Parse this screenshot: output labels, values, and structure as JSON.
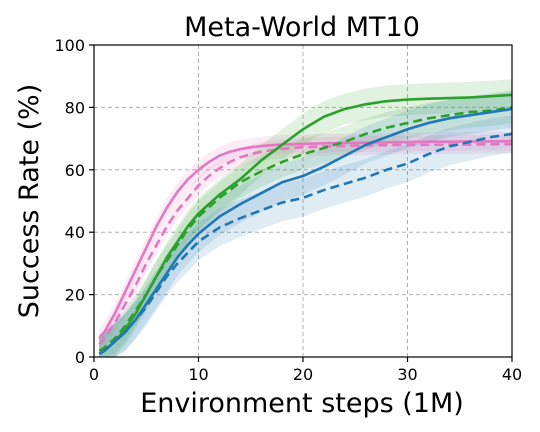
{
  "chart_data": {
    "type": "line",
    "title": "Meta-World MT10",
    "xlabel": "Environment steps (1M)",
    "ylabel": "Success Rate (%)",
    "xlim": [
      0,
      40
    ],
    "ylim": [
      0,
      100
    ],
    "xticks": [
      0,
      10,
      20,
      30,
      40
    ],
    "yticks": [
      0,
      20,
      40,
      60,
      80,
      100
    ],
    "grid": true,
    "series": [
      {
        "color": "#e377c2",
        "linestyle": "solid",
        "band": 3,
        "x": [
          0.5,
          1,
          2,
          3,
          4,
          5,
          6,
          7,
          8,
          9,
          10,
          11,
          12,
          13,
          14,
          15,
          16,
          17,
          18,
          19,
          20,
          22,
          24,
          26,
          28,
          30,
          32,
          34,
          36,
          38,
          40
        ],
        "y": [
          6,
          8,
          14,
          21,
          28,
          35,
          42,
          48,
          53,
          57,
          60,
          62.5,
          64.5,
          65.8,
          66.6,
          67.2,
          67.6,
          67.9,
          68.1,
          68.2,
          68.3,
          68.5,
          68.6,
          68.7,
          68.8,
          68.9,
          69,
          69,
          69.1,
          69.1,
          69.2
        ]
      },
      {
        "color": "#e377c2",
        "linestyle": "dashed",
        "band": 3,
        "x": [
          0.5,
          1,
          2,
          3,
          4,
          5,
          6,
          7,
          8,
          9,
          10,
          11,
          12,
          13,
          14,
          15,
          16,
          17,
          18,
          19,
          20,
          22,
          24,
          26,
          28,
          30,
          32,
          34,
          36,
          38,
          40
        ],
        "y": [
          4,
          6,
          11,
          17,
          23,
          30,
          36,
          42,
          47,
          51,
          55,
          58,
          60.5,
          62.5,
          64,
          65,
          65.8,
          66.3,
          66.7,
          67,
          67.2,
          67.5,
          67.7,
          67.8,
          67.9,
          68,
          68,
          68.1,
          68.1,
          68.2,
          68.2
        ]
      },
      {
        "color": "#2ca02c",
        "linestyle": "solid",
        "band": 5,
        "x": [
          0.5,
          1,
          2,
          3,
          4,
          5,
          6,
          7,
          8,
          9,
          10,
          12,
          14,
          16,
          18,
          20,
          22,
          24,
          26,
          28,
          30,
          32,
          34,
          36,
          38,
          40
        ],
        "y": [
          1,
          2,
          5,
          9,
          14,
          20,
          26,
          32,
          37,
          42,
          46,
          52,
          57,
          63,
          68,
          73,
          77,
          79.5,
          81,
          82,
          82.5,
          82.8,
          83,
          83.2,
          83.6,
          84
        ]
      },
      {
        "color": "#2ca02c",
        "linestyle": "dashed",
        "band": 5,
        "x": [
          0.5,
          1,
          2,
          3,
          4,
          5,
          6,
          7,
          8,
          9,
          10,
          12,
          14,
          16,
          18,
          20,
          22,
          24,
          26,
          28,
          30,
          32,
          34,
          36,
          38,
          40
        ],
        "y": [
          2,
          3,
          6,
          10,
          15,
          20,
          26,
          31,
          36,
          41,
          45,
          51,
          56,
          59.5,
          62.5,
          65,
          67,
          69,
          71.5,
          73.5,
          75,
          76.5,
          77.5,
          78.5,
          79,
          80
        ]
      },
      {
        "color": "#1f77b4",
        "linestyle": "solid",
        "band": 6,
        "x": [
          0.5,
          1,
          2,
          3,
          4,
          5,
          6,
          7,
          8,
          9,
          10,
          12,
          14,
          16,
          18,
          20,
          22,
          24,
          26,
          28,
          30,
          32,
          34,
          36,
          38,
          40
        ],
        "y": [
          1,
          2,
          5,
          8,
          12,
          17,
          22,
          27,
          32,
          36,
          39.5,
          45,
          49,
          52.5,
          56,
          58,
          61,
          64.5,
          68,
          70.5,
          73,
          75,
          76.5,
          77.5,
          78.5,
          79.5
        ]
      },
      {
        "color": "#1f77b4",
        "linestyle": "dashed",
        "band": 6,
        "x": [
          0.5,
          1,
          2,
          3,
          4,
          5,
          6,
          7,
          8,
          9,
          10,
          12,
          14,
          16,
          18,
          20,
          22,
          24,
          26,
          28,
          30,
          32,
          34,
          36,
          38,
          40
        ],
        "y": [
          1,
          2,
          5,
          8,
          12,
          16,
          21,
          26,
          30,
          33.5,
          37,
          41.5,
          44.5,
          47,
          49.5,
          51,
          53.5,
          55.5,
          57.5,
          60,
          62,
          65,
          67.5,
          69,
          70.5,
          71.5
        ]
      }
    ]
  }
}
